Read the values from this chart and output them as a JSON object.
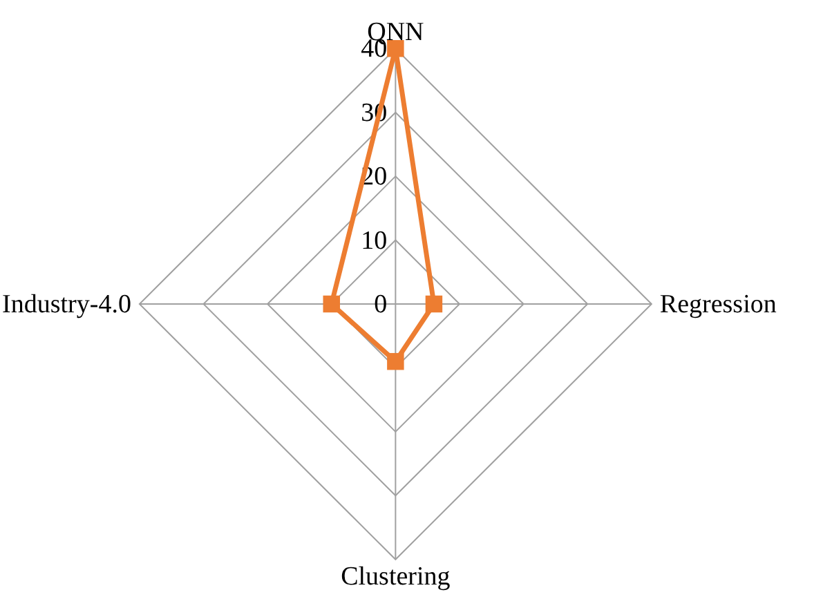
{
  "chart_data": {
    "type": "radar",
    "categories": [
      "QNN",
      "Regression",
      "Clustering",
      "Industry-4.0"
    ],
    "series": [
      {
        "color": "#ed7d31",
        "values": [
          40,
          6,
          9,
          10
        ]
      }
    ],
    "ylim": [
      0,
      40
    ],
    "yticks": [
      0,
      10,
      20,
      30,
      40
    ],
    "grid": true,
    "marker": "square",
    "line_style": "solid"
  }
}
